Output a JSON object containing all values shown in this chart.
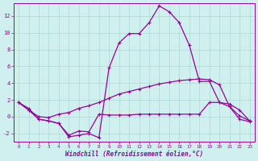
{
  "xlabel": "Windchill (Refroidissement éolien,°C)",
  "bg_color": "#cff0ee",
  "grid_color": "#aaddcc",
  "line_color": "#990099",
  "ylim": [
    -3.0,
    13.5
  ],
  "yticks": [
    -2,
    0,
    2,
    4,
    6,
    8,
    10,
    12
  ],
  "xlim": [
    -0.5,
    23.5
  ],
  "xticks": [
    0,
    1,
    2,
    3,
    4,
    5,
    6,
    7,
    8,
    9,
    10,
    11,
    12,
    13,
    14,
    15,
    16,
    17,
    18,
    19,
    20,
    21,
    22,
    23
  ],
  "line1_x": [
    0,
    1,
    2,
    3,
    4,
    5,
    6,
    7,
    8,
    9,
    10,
    11,
    12,
    13,
    14,
    15,
    16,
    17,
    18,
    19,
    20,
    21,
    22,
    23
  ],
  "line1_y": [
    1.7,
    1.0,
    -0.3,
    -0.5,
    -0.8,
    -2.2,
    -1.7,
    -1.8,
    0.3,
    0.2,
    0.2,
    0.2,
    0.3,
    0.3,
    0.3,
    0.3,
    0.3,
    0.3,
    0.3,
    1.7,
    1.7,
    1.5,
    0.8,
    -0.5
  ],
  "line2_x": [
    0,
    1,
    2,
    3,
    4,
    5,
    6,
    7,
    8,
    9,
    10,
    11,
    12,
    13,
    14,
    15,
    16,
    17,
    18,
    19,
    20,
    21,
    22,
    23
  ],
  "line2_y": [
    1.7,
    0.8,
    0.0,
    -0.1,
    0.3,
    0.5,
    1.0,
    1.3,
    1.7,
    2.2,
    2.7,
    3.0,
    3.3,
    3.6,
    3.9,
    4.1,
    4.3,
    4.4,
    4.5,
    4.4,
    3.8,
    1.2,
    0.1,
    -0.5
  ],
  "line3_x": [
    0,
    1,
    2,
    3,
    4,
    5,
    6,
    7,
    8,
    9,
    10,
    11,
    12,
    13,
    14,
    15,
    16,
    17,
    18,
    19,
    20,
    21,
    22,
    23
  ],
  "line3_y": [
    1.7,
    0.8,
    -0.3,
    -0.5,
    -0.8,
    -2.4,
    -2.2,
    -2.0,
    -2.5,
    5.8,
    8.8,
    9.9,
    9.9,
    11.2,
    13.2,
    12.5,
    11.2,
    8.5,
    4.2,
    4.2,
    1.7,
    1.2,
    -0.3,
    -0.6
  ]
}
